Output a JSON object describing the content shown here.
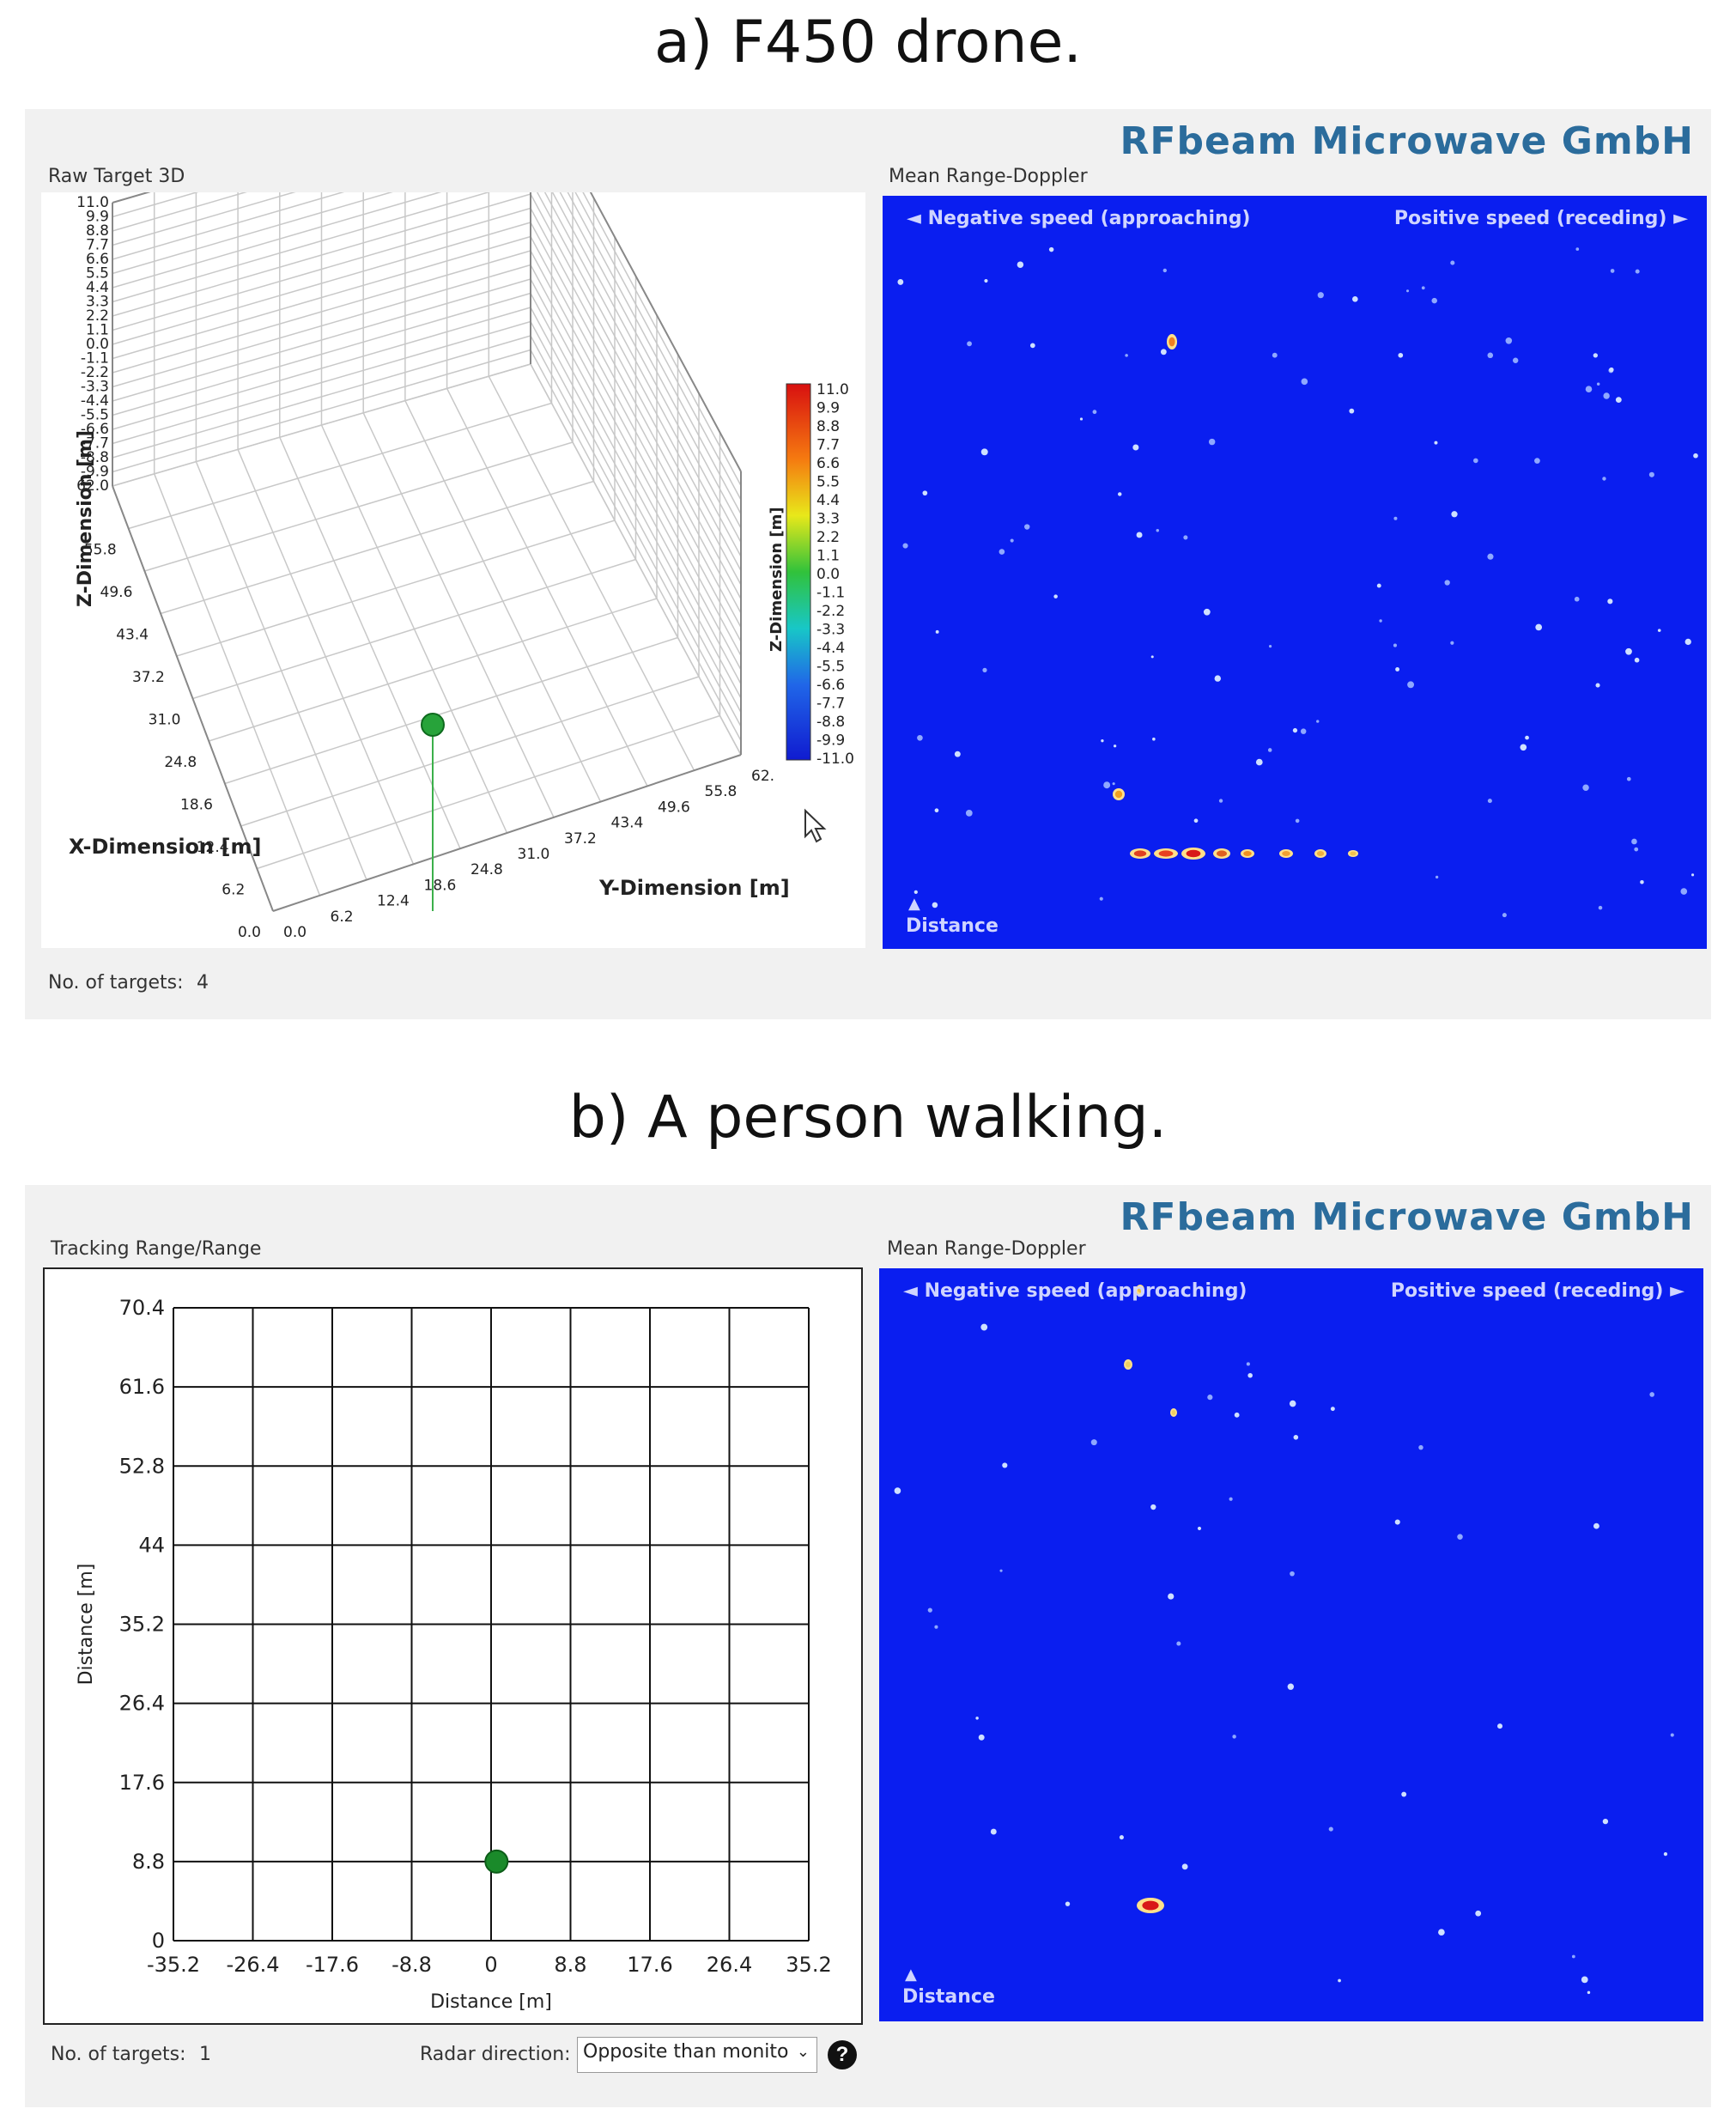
{
  "caption_a": "a) F450 drone.",
  "caption_b": "b) A person walking.",
  "panel_a": {
    "brand": "RFbeam Microwave GmbH",
    "left_title": "Raw Target 3D",
    "right_title": "Mean Range-Doppler",
    "neg_speed": "◄ Negative speed (approaching)",
    "pos_speed": "Positive speed (receding) ►",
    "distance_arrow": "▲",
    "distance_label": "Distance",
    "targets_label": "No. of targets:",
    "targets_value": "4",
    "z_axis_label": "Z-Dimension [m]",
    "x_axis_label": "X-Dimension [m]",
    "y_axis_label": "Y-Dimension [m]",
    "colorbar_label": "Z-Dimension [m]",
    "z_ticks": [
      "11.0",
      "9.9",
      "8.8",
      "7.7",
      "6.6",
      "5.5",
      "4.4",
      "3.3",
      "2.2",
      "1.1",
      "0.0",
      "-1.1",
      "-2.2",
      "-3.3",
      "-4.4",
      "-5.5",
      "-6.6",
      "-7.7",
      "-8.8",
      "-9.9",
      "62.0"
    ],
    "x_ticks": [
      "55.8",
      "49.6",
      "43.4",
      "37.2",
      "31.0",
      "24.8",
      "18.6",
      "12.4",
      "6.2",
      "0.0"
    ],
    "y_ticks": [
      "0.0",
      "6.2",
      "12.4",
      "18.6",
      "24.8",
      "31.0",
      "37.2",
      "43.4",
      "49.6",
      "55.8",
      "62."
    ],
    "colorbar_ticks": [
      "11.0",
      "9.9",
      "8.8",
      "7.7",
      "6.6",
      "5.5",
      "4.4",
      "3.3",
      "2.2",
      "1.1",
      "0.0",
      "-1.1",
      "-2.2",
      "-3.3",
      "-4.4",
      "-5.5",
      "-6.6",
      "-7.7",
      "-8.8",
      "-9.9",
      "-11.0"
    ]
  },
  "panel_b": {
    "brand": "RFbeam Microwave GmbH",
    "left_title": "Tracking Range/Range",
    "right_title": "Mean Range-Doppler",
    "neg_speed": "◄ Negative speed (approaching)",
    "pos_speed": "Positive speed (receding) ►",
    "distance_arrow": "▲",
    "distance_label": "Distance",
    "targets_label": "No. of targets:",
    "targets_value": "1",
    "radar_direction_label": "Radar direction:",
    "radar_direction_value": "Opposite than monito",
    "help": "?"
  },
  "chart_data": {
    "type": "scatter",
    "title": "Tracking Range/Range",
    "xlabel": "Distance [m]",
    "ylabel": "Distance [m]",
    "x_ticks": [
      "-35.2",
      "-26.4",
      "-17.6",
      "-8.8",
      "0",
      "8.8",
      "17.6",
      "26.4",
      "35.2"
    ],
    "y_ticks": [
      "70.4",
      "61.6",
      "52.8",
      "44",
      "35.2",
      "26.4",
      "17.6",
      "8.8",
      "0"
    ],
    "xlim": [
      -35.2,
      35.2
    ],
    "ylim": [
      0,
      70.4
    ],
    "grid": true,
    "points": [
      {
        "x": 0.6,
        "y": 8.8
      }
    ],
    "point_color": "#1a8a2a"
  }
}
